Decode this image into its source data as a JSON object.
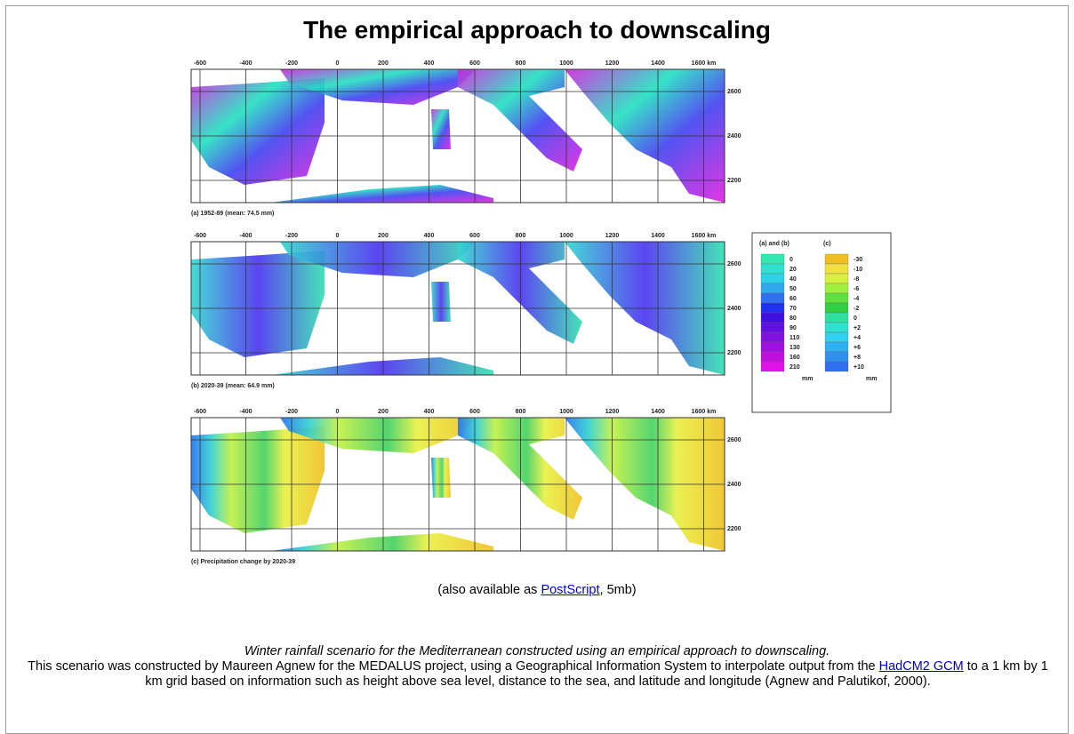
{
  "header": {
    "title": "The empirical approach to downscaling"
  },
  "figure": {
    "x_labels": [
      "-600",
      "-400",
      "-200",
      "0",
      "200",
      "400",
      "600",
      "800",
      "1000",
      "1200",
      "1400",
      "1600 km"
    ],
    "y_labels": [
      "2600",
      "2400",
      "2200"
    ],
    "panels": [
      {
        "caption": "(a) 1952-89 (mean: 74.5 mm)"
      },
      {
        "caption": "(b) 2020-39 (mean: 64.9 mm)"
      },
      {
        "caption": "(c) Precipitation change by 2020-39"
      }
    ],
    "legend": {
      "ab": {
        "heading": "(a) and (b)",
        "values": [
          "0",
          "20",
          "40",
          "50",
          "60",
          "70",
          "80",
          "90",
          "110",
          "130",
          "160",
          "210"
        ],
        "unit": "mm"
      },
      "c": {
        "heading": "(c)",
        "values": [
          "-30",
          "-10",
          "-8",
          "-6",
          "-4",
          "-2",
          "0",
          "+2",
          "+4",
          "+6",
          "+8",
          "+10"
        ],
        "unit": "mm"
      }
    }
  },
  "availability": {
    "prefix": "(also available as ",
    "link": "PostScript",
    "suffix": ", 5mb)"
  },
  "caption": "Winter rainfall scenario for the Mediterranean constructed using an empirical approach to downscaling.",
  "description": {
    "before": "This scenario was constructed by Maureen Agnew for the MEDALUS project, using a Geographical Information System to interpolate output from the ",
    "link": "HadCM2 GCM",
    "after": " to a 1 km by 1 km grid based on information such as height above sea level, distance to the sea, and latitude and longitude (Agnew and Palutikof, 2000)."
  }
}
